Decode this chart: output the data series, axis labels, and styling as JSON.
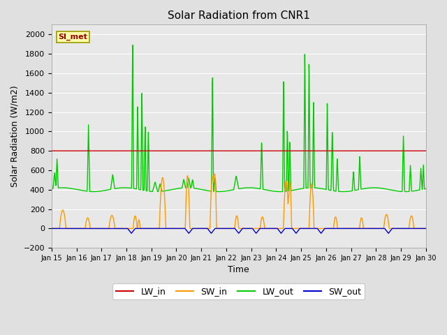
{
  "title": "Solar Radiation from CNR1",
  "xlabel": "Time",
  "ylabel": "Solar Radiation (W/m2)",
  "ylim": [
    -200,
    2100
  ],
  "yticks": [
    -200,
    0,
    200,
    400,
    600,
    800,
    1000,
    1200,
    1400,
    1600,
    1800,
    2000
  ],
  "background_color": "#e0e0e0",
  "plot_bg_color": "#e8e8e8",
  "grid_color": "white",
  "legend_label": "SI_met",
  "series": {
    "LW_in": {
      "color": "#cc0000",
      "lw": 1.0
    },
    "SW_in": {
      "color": "#ff9900",
      "lw": 1.0
    },
    "LW_out": {
      "color": "#00cc00",
      "lw": 1.0
    },
    "SW_out": {
      "color": "#0000cc",
      "lw": 1.0
    }
  },
  "x_tick_labels": [
    "Jan 15",
    "Jan 16",
    "Jan 17",
    "Jan 18",
    "Jan 19",
    "Jan 20",
    "Jan 21",
    "Jan 22",
    "Jan 23",
    "Jan 24",
    "Jan 25",
    "Jan 26",
    "Jan 27",
    "Jan 28",
    "Jan 29",
    "Jan 30"
  ],
  "figsize": [
    6.4,
    4.8
  ],
  "dpi": 100
}
